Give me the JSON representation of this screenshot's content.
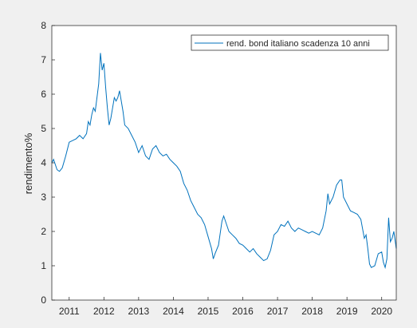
{
  "chart_data": {
    "type": "line",
    "title": "",
    "xlabel": "",
    "ylabel": "rendimento%",
    "xlim": [
      2010.5,
      2020.42
    ],
    "ylim": [
      0,
      8
    ],
    "xticks": [
      2011,
      2012,
      2013,
      2014,
      2015,
      2016,
      2017,
      2018,
      2019,
      2020
    ],
    "yticks": [
      0,
      1,
      2,
      3,
      4,
      5,
      6,
      7,
      8
    ],
    "grid": false,
    "legend_position": "top-right",
    "series": [
      {
        "name": "rend. bond italiano scadenza 10 anni",
        "color": "#0072bd",
        "x": [
          2010.5,
          2010.55,
          2010.6,
          2010.65,
          2010.72,
          2010.8,
          2010.9,
          2011.0,
          2011.1,
          2011.2,
          2011.3,
          2011.4,
          2011.5,
          2011.55,
          2011.6,
          2011.65,
          2011.7,
          2011.75,
          2011.8,
          2011.85,
          2011.9,
          2011.95,
          2012.0,
          2012.05,
          2012.1,
          2012.15,
          2012.2,
          2012.25,
          2012.3,
          2012.35,
          2012.4,
          2012.45,
          2012.5,
          2012.55,
          2012.6,
          2012.7,
          2012.8,
          2012.9,
          2013.0,
          2013.1,
          2013.2,
          2013.3,
          2013.4,
          2013.5,
          2013.6,
          2013.7,
          2013.8,
          2013.9,
          2014.0,
          2014.1,
          2014.2,
          2014.3,
          2014.4,
          2014.5,
          2014.6,
          2014.7,
          2014.8,
          2014.9,
          2015.0,
          2015.1,
          2015.15,
          2015.2,
          2015.3,
          2015.4,
          2015.45,
          2015.5,
          2015.6,
          2015.7,
          2015.8,
          2015.9,
          2016.0,
          2016.1,
          2016.2,
          2016.3,
          2016.4,
          2016.5,
          2016.6,
          2016.7,
          2016.8,
          2016.9,
          2017.0,
          2017.1,
          2017.2,
          2017.3,
          2017.4,
          2017.5,
          2017.6,
          2017.7,
          2017.8,
          2017.9,
          2018.0,
          2018.1,
          2018.2,
          2018.3,
          2018.4,
          2018.45,
          2018.5,
          2018.6,
          2018.7,
          2018.8,
          2018.85,
          2018.9,
          2019.0,
          2019.1,
          2019.2,
          2019.3,
          2019.4,
          2019.5,
          2019.55,
          2019.6,
          2019.65,
          2019.7,
          2019.8,
          2019.9,
          2020.0,
          2020.05,
          2020.1,
          2020.15,
          2020.2,
          2020.25,
          2020.3,
          2020.35,
          2020.42
        ],
        "values": [
          4.0,
          4.1,
          3.95,
          3.8,
          3.75,
          3.85,
          4.2,
          4.6,
          4.65,
          4.7,
          4.8,
          4.7,
          4.85,
          5.2,
          5.1,
          5.4,
          5.6,
          5.5,
          5.9,
          6.3,
          7.2,
          6.7,
          6.9,
          6.2,
          5.6,
          5.1,
          5.3,
          5.6,
          5.9,
          5.8,
          5.9,
          6.1,
          5.8,
          5.5,
          5.1,
          5.0,
          4.8,
          4.6,
          4.3,
          4.5,
          4.2,
          4.1,
          4.4,
          4.5,
          4.3,
          4.2,
          4.25,
          4.1,
          4.0,
          3.9,
          3.75,
          3.4,
          3.2,
          2.9,
          2.7,
          2.5,
          2.4,
          2.2,
          1.85,
          1.5,
          1.2,
          1.35,
          1.6,
          2.3,
          2.45,
          2.3,
          2.0,
          1.9,
          1.8,
          1.65,
          1.6,
          1.5,
          1.4,
          1.5,
          1.35,
          1.25,
          1.15,
          1.2,
          1.45,
          1.9,
          2.0,
          2.2,
          2.15,
          2.3,
          2.1,
          2.0,
          2.1,
          2.05,
          2.0,
          1.95,
          2.0,
          1.95,
          1.9,
          2.1,
          2.6,
          3.1,
          2.8,
          3.0,
          3.35,
          3.5,
          3.5,
          3.0,
          2.8,
          2.6,
          2.55,
          2.5,
          2.35,
          1.8,
          1.9,
          1.5,
          1.05,
          0.95,
          1.0,
          1.35,
          1.4,
          1.1,
          0.95,
          1.2,
          2.4,
          1.7,
          1.8,
          2.0,
          1.5
        ]
      }
    ]
  }
}
